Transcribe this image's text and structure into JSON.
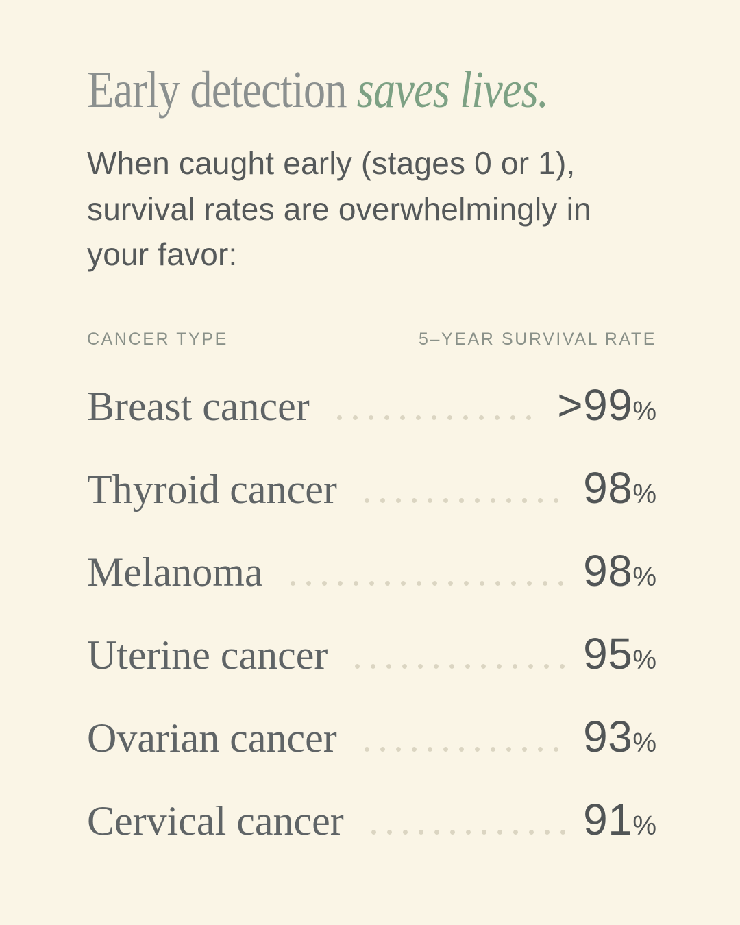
{
  "colors": {
    "background": "#FAF5E6",
    "title_gray": "#8B908F",
    "accent_green": "#7DA184",
    "body_text": "#55595A",
    "column_header_sage": "#8A9189",
    "row_label_text": "#5F6466",
    "value_text": "#515556",
    "leader_dots": "#DBD5C2"
  },
  "header": {
    "title_regular": "Early detection ",
    "title_italic": "saves lives.",
    "subtitle": "When caught early (stages 0 or 1), survival rates are overwhelmingly in your favor:"
  },
  "table": {
    "column_headers": {
      "cancer_type": "CANCER TYPE",
      "survival_rate": "5–YEAR SURVIVAL RATE"
    },
    "rows": [
      {
        "label": "Breast cancer",
        "value": ">99",
        "unit": "%"
      },
      {
        "label": "Thyroid cancer",
        "value": "98",
        "unit": "%"
      },
      {
        "label": "Melanoma",
        "value": "98",
        "unit": "%"
      },
      {
        "label": "Uterine cancer",
        "value": "95",
        "unit": "%"
      },
      {
        "label": "Ovarian cancer",
        "value": "93",
        "unit": "%"
      },
      {
        "label": "Cervical cancer",
        "value": "91",
        "unit": "%"
      }
    ]
  },
  "chart_data": {
    "type": "table",
    "title": "Early detection saves lives.",
    "subtitle": "When caught early (stages 0 or 1), survival rates are overwhelmingly in your favor:",
    "columns": [
      "Cancer type",
      "5-year survival rate"
    ],
    "rows": [
      [
        "Breast cancer",
        ">99%"
      ],
      [
        "Thyroid cancer",
        "98%"
      ],
      [
        "Melanoma",
        "98%"
      ],
      [
        "Uterine cancer",
        "95%"
      ],
      [
        "Ovarian cancer",
        "93%"
      ],
      [
        "Cervical cancer",
        "91%"
      ]
    ],
    "values_numeric": [
      99,
      98,
      98,
      95,
      93,
      91
    ]
  }
}
